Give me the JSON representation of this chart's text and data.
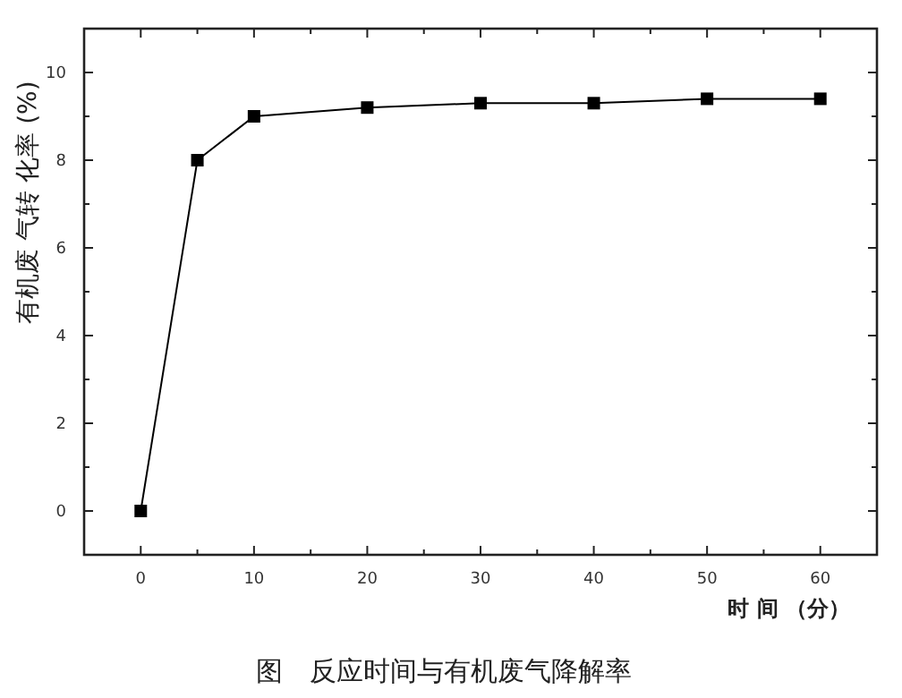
{
  "chart_data": {
    "type": "line",
    "xlabel": "时 间 （分）",
    "ylabel": "有机废 气转 化率 (%)",
    "annotations": [
      "图　反应时间与有机废气降解率"
    ],
    "x": [
      0,
      5,
      10,
      20,
      30,
      40,
      50,
      60
    ],
    "series": [
      {
        "color": "#000000",
        "values": [
          0,
          8,
          9.0,
          9.2,
          9.3,
          9.3,
          9.4,
          9.4
        ]
      }
    ],
    "xlim": [
      -5,
      65
    ],
    "ylim": [
      -1,
      11
    ],
    "xticks": [
      0,
      {
        "value": 5,
        "label": null
      },
      10,
      {
        "value": 15,
        "label": null
      },
      20,
      {
        "value": 25,
        "label": null
      },
      30,
      {
        "value": 35,
        "label": null
      },
      40,
      {
        "value": 45,
        "label": null
      },
      50,
      {
        "value": 55,
        "label": null
      },
      60
    ],
    "yticks": [
      {
        "value": -1,
        "label": null
      },
      0,
      {
        "value": 1,
        "label": null
      },
      2,
      {
        "value": 3,
        "label": null
      },
      4,
      {
        "value": 5,
        "label": null
      },
      6,
      {
        "value": 7,
        "label": null
      },
      8,
      {
        "value": 9,
        "label": null
      },
      10
    ],
    "marker": "square",
    "line_style": "solid",
    "grid": false
  }
}
